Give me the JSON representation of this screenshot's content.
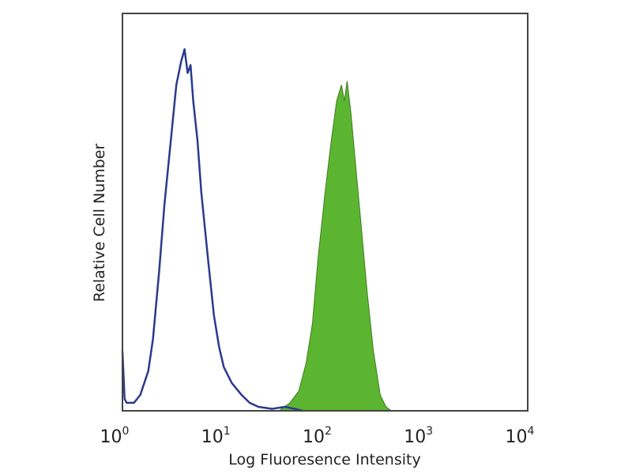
{
  "chart_data": {
    "type": "area",
    "title": "",
    "xlabel": "Log Fluoresence Intensity",
    "ylabel": "Relative Cell Number",
    "x_scale": "log",
    "xlim": [
      1,
      10000
    ],
    "ylim": [
      0,
      100
    ],
    "grid": false,
    "x_ticks": [
      {
        "base": "10",
        "exp": "0",
        "value": 1
      },
      {
        "base": "10",
        "exp": "1",
        "value": 10
      },
      {
        "base": "10",
        "exp": "2",
        "value": 100
      },
      {
        "base": "10",
        "exp": "3",
        "value": 1000
      },
      {
        "base": "10",
        "exp": "4",
        "value": 10000
      }
    ],
    "series": [
      {
        "style": "outline",
        "color": "#2b3a8c",
        "x": [
          1.0,
          1.05,
          1.1,
          1.3,
          1.5,
          1.8,
          2.0,
          2.3,
          2.6,
          3.0,
          3.4,
          3.8,
          4.1,
          4.4,
          4.7,
          5.0,
          5.5,
          6.0,
          7.0,
          8.0,
          9.0,
          10,
          12,
          15,
          18,
          22,
          30,
          40,
          50,
          60
        ],
        "y": [
          15,
          3,
          2,
          2,
          4,
          10,
          18,
          35,
          52,
          68,
          82,
          88,
          91,
          85,
          87,
          78,
          68,
          55,
          38,
          24,
          16,
          11,
          7,
          4,
          2,
          1,
          0.5,
          1,
          0.5,
          0
        ]
      },
      {
        "style": "filled",
        "color": "#5cb531",
        "x": [
          35,
          45,
          55,
          65,
          75,
          85,
          100,
          115,
          130,
          145,
          155,
          165,
          180,
          200,
          230,
          260,
          300,
          350,
          400,
          450
        ],
        "y": [
          0,
          2,
          5,
          12,
          22,
          38,
          55,
          68,
          78,
          82,
          78,
          83,
          75,
          62,
          45,
          30,
          15,
          4,
          1,
          0
        ]
      }
    ]
  }
}
